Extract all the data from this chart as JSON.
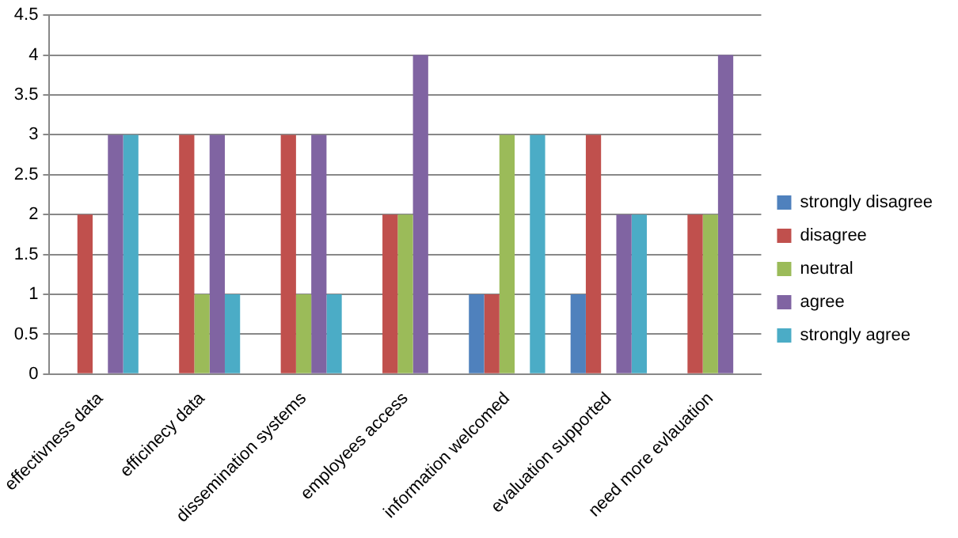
{
  "chart_data": {
    "type": "bar",
    "categories": [
      "effectivness data",
      "efficinecy data",
      "dissemination systems",
      "employees access",
      "information welcomed",
      "evaluation supported",
      "need more evlauation"
    ],
    "series": [
      {
        "name": "strongly disagree",
        "color": "#4f81bd",
        "values": [
          0,
          0,
          0,
          0,
          1,
          1,
          0
        ]
      },
      {
        "name": "disagree",
        "color": "#c0504d",
        "values": [
          2,
          3,
          3,
          2,
          1,
          3,
          2
        ]
      },
      {
        "name": "neutral",
        "color": "#9bbb59",
        "values": [
          0,
          1,
          1,
          2,
          3,
          0,
          2
        ]
      },
      {
        "name": "agree",
        "color": "#8064a2",
        "values": [
          3,
          3,
          3,
          4,
          0,
          2,
          4
        ]
      },
      {
        "name": "strongly agree",
        "color": "#4bacc6",
        "values": [
          3,
          1,
          1,
          0,
          3,
          2,
          0
        ]
      }
    ],
    "ylim": [
      0,
      4.5
    ],
    "yticks": [
      0,
      0.5,
      1,
      1.5,
      2,
      2.5,
      3,
      3.5,
      4,
      4.5
    ],
    "grid": "y",
    "legend": "right"
  }
}
